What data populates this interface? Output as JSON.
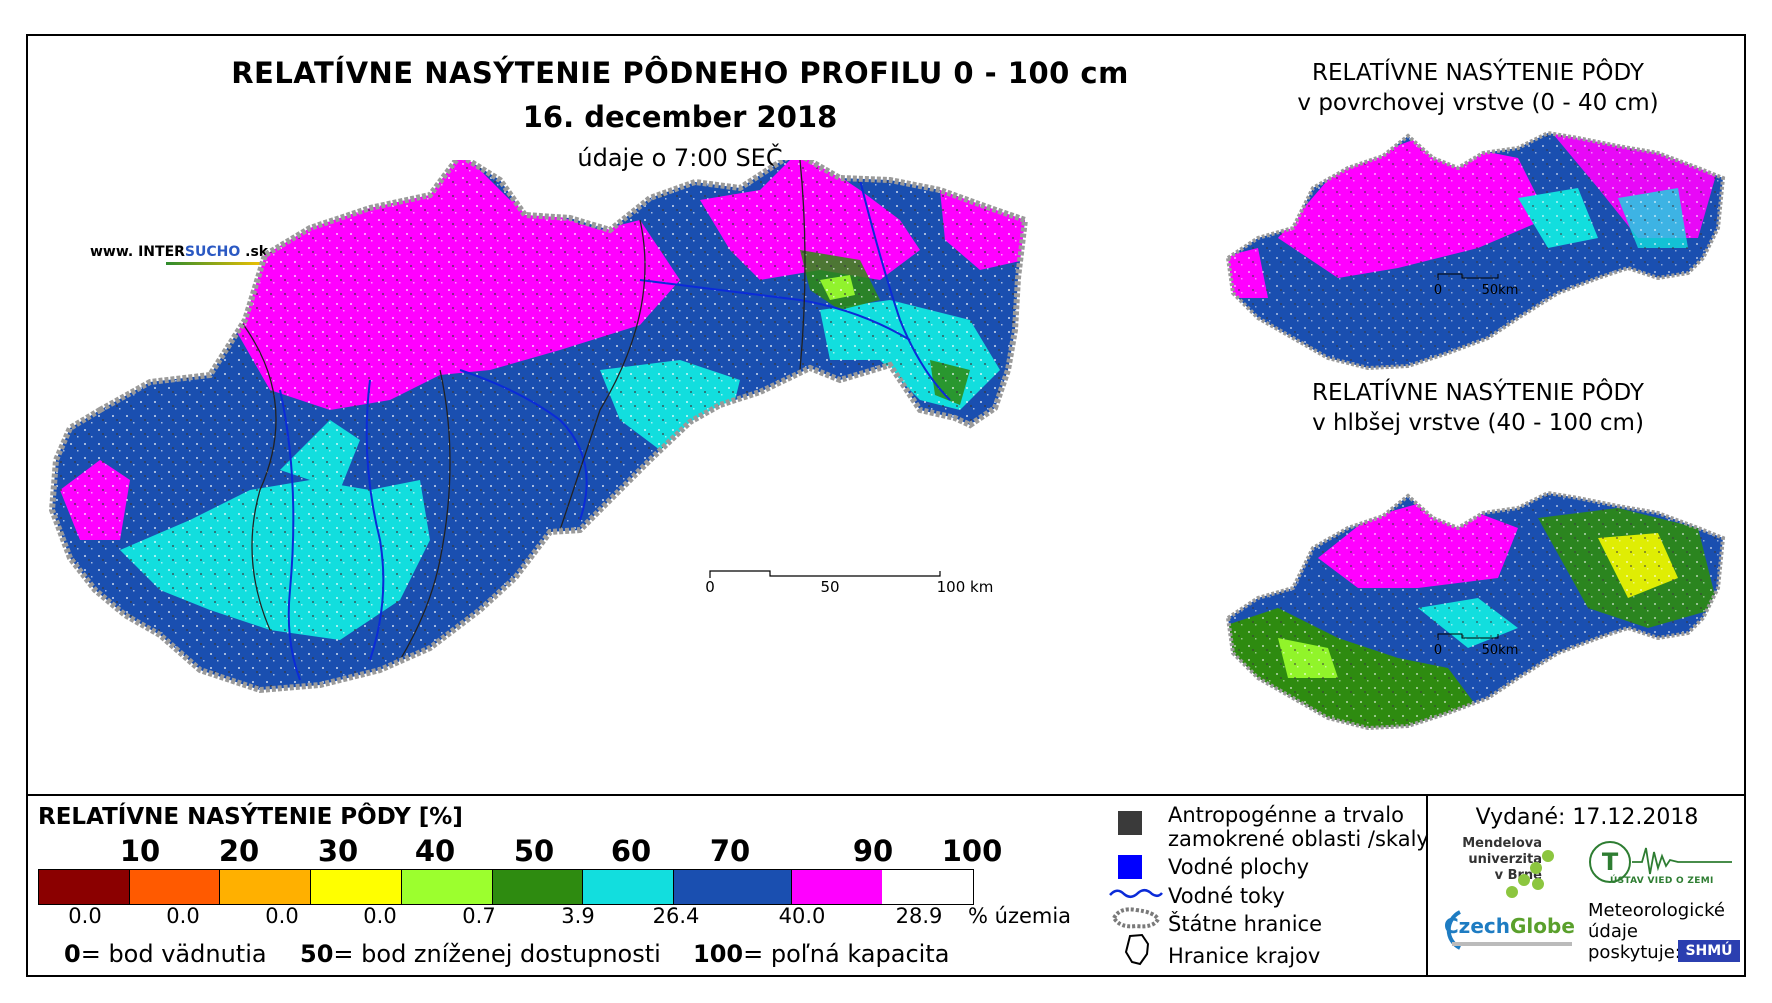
{
  "title": {
    "main": "RELATÍVNE NASÝTENIE PÔDNEHO PROFILU 0 - 100 cm",
    "date": "16. december 2018",
    "time": "údaje o 7:00 SEČ"
  },
  "website": {
    "prefix": "www. INTER",
    "highlight": "SUCHO",
    "suffix": " .sk"
  },
  "insets": [
    {
      "title_line1": "RELATÍVNE NASÝTENIE PÔDY",
      "title_line2": "v povrchovej vrstve (0 - 40 cm)",
      "scale": {
        "zero": "0",
        "end": "50km"
      }
    },
    {
      "title_line1": "RELATÍVNE NASÝTENIE PÔDY",
      "title_line2": "v hlbšej vrstve (40 - 100 cm)",
      "scale": {
        "zero": "0",
        "end": "50km"
      }
    }
  ],
  "main_scale": {
    "labels": [
      "0",
      "50",
      "100 km"
    ]
  },
  "legend": {
    "title": "RELATÍVNE NASÝTENIE PÔDY [%]",
    "ticks": [
      "10",
      "20",
      "30",
      "40",
      "50",
      "60",
      "70",
      "90",
      "100"
    ],
    "classes": [
      {
        "color": "#8b0000",
        "share": "0.0"
      },
      {
        "color": "#ff5a00",
        "share": "0.0"
      },
      {
        "color": "#ffb000",
        "share": "0.0"
      },
      {
        "color": "#ffff00",
        "share": "0.0"
      },
      {
        "color": "#9cff2e",
        "share": "0.7"
      },
      {
        "color": "#2e8b10",
        "share": "3.9"
      },
      {
        "color": "#12dede",
        "share": "26.4"
      },
      {
        "color": "#1a4fb0",
        "share": "40.0"
      },
      {
        "color": "#ff00ff",
        "share": "28.9"
      }
    ],
    "share_unit": "% územia",
    "key": [
      {
        "value": "0",
        "text": "= bod vädnutia"
      },
      {
        "value": "50",
        "text": "= bod zníženej dostupnosti"
      },
      {
        "value": "100",
        "text": "= poľná kapacita"
      }
    ]
  },
  "symbols": {
    "anthropogenic": "Antropogénne a trvalo",
    "anthropogenic2": "zamokrené oblasti /skaly",
    "water_areas": "Vodné plochy",
    "water_courses": "Vodné toky",
    "state_border": "Štátne hranice",
    "region_border": "Hranice krajov",
    "colors": {
      "anthropogenic": "#3a3a3a",
      "water": "#0000ff"
    }
  },
  "issued": "Vydané: 17.12.2018",
  "logos": {
    "mendel": [
      "Mendelova",
      "univerzita",
      "v Brně"
    ],
    "czechglobe_a": "Czech",
    "czechglobe_b": "Globe",
    "ustav": "ÚSTAV VIED O ZEMI",
    "met": [
      "Meteorologické",
      "údaje",
      "poskytuje:"
    ],
    "shmu": "SHMÚ"
  }
}
